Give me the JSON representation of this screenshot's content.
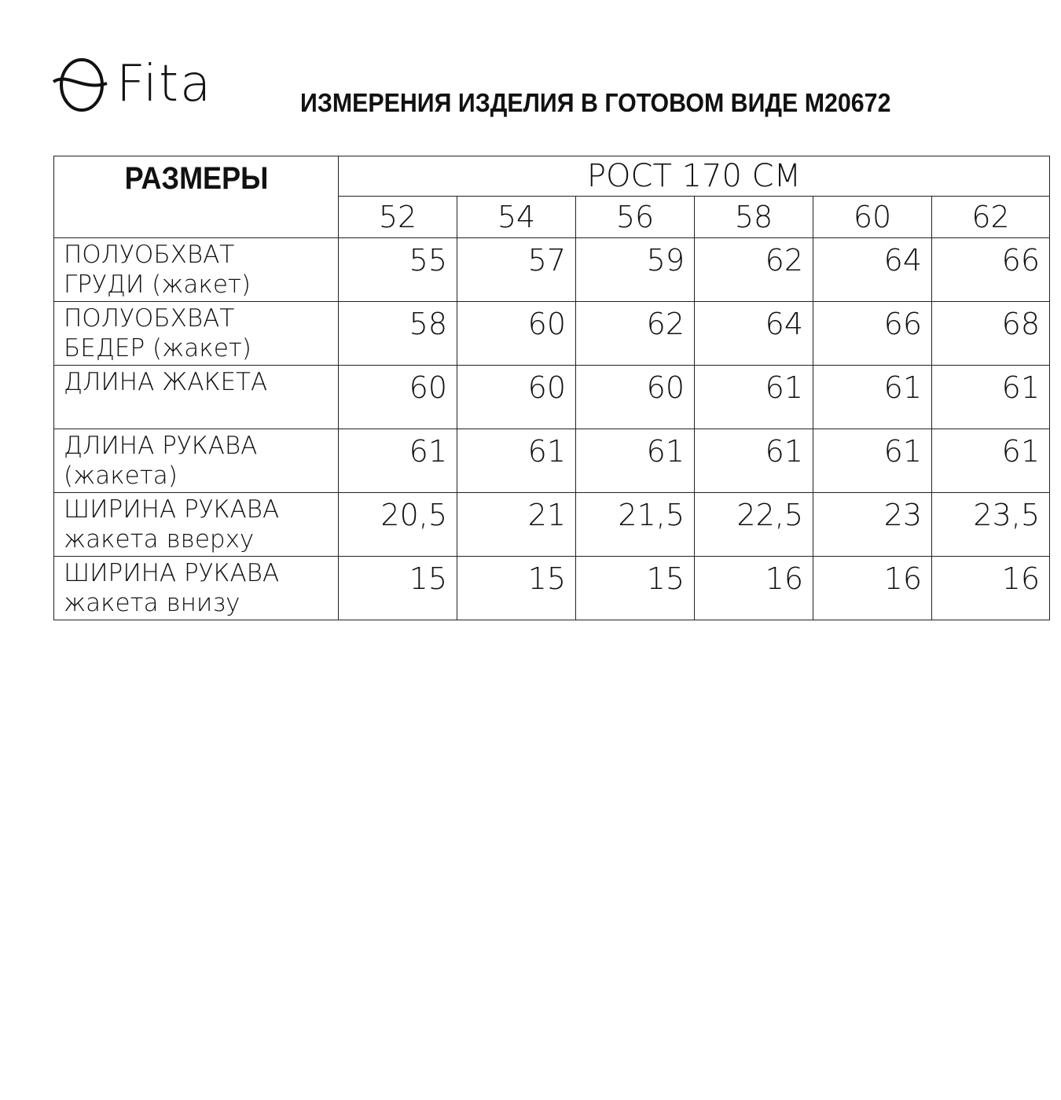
{
  "brand": {
    "name": "Fita"
  },
  "title": "ИЗМЕРЕНИЯ ИЗДЕЛИЯ В ГОТОВОМ ВИДЕ M20672",
  "table": {
    "corner_header": "РАЗМЕРЫ",
    "height_header": "РОСТ 170 СМ",
    "sizes": [
      "52",
      "54",
      "56",
      "58",
      "60",
      "62"
    ],
    "rows": [
      {
        "label_line1": "ПОЛУОБХВАТ",
        "label_line2": "ГРУДИ (жакет)",
        "values": [
          "55",
          "57",
          "59",
          "62",
          "64",
          "66"
        ]
      },
      {
        "label_line1": "ПОЛУОБХВАТ",
        "label_line2": "БЕДЕР (жакет)",
        "values": [
          "58",
          "60",
          "62",
          "64",
          "66",
          "68"
        ]
      },
      {
        "label_line1": "ДЛИНА ЖАКЕТА",
        "label_line2": "",
        "values": [
          "60",
          "60",
          "60",
          "61",
          "61",
          "61"
        ]
      },
      {
        "label_line1": "ДЛИНА РУКАВА",
        "label_line2": "(жакета)",
        "values": [
          "61",
          "61",
          "61",
          "61",
          "61",
          "61"
        ]
      },
      {
        "label_line1": "ШИРИНА РУКАВА",
        "label_line2": "жакета вверху",
        "values": [
          "20,5",
          "21",
          "21,5",
          "22,5",
          "23",
          "23,5"
        ]
      },
      {
        "label_line1": "ШИРИНА РУКАВА",
        "label_line2": "жакета внизу",
        "values": [
          "15",
          "15",
          "15",
          "16",
          "16",
          "16"
        ]
      }
    ]
  }
}
